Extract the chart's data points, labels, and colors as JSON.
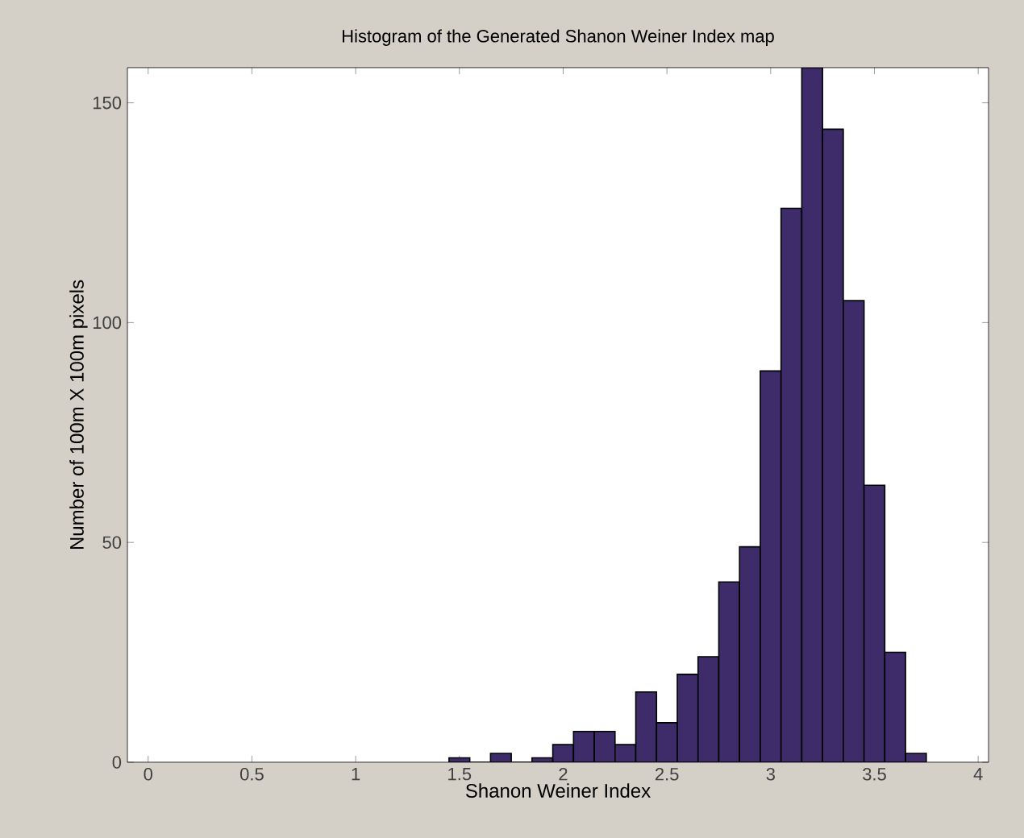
{
  "chart_data": {
    "type": "histogram",
    "title": "Histogram of the Generated Shanon Weiner Index map",
    "xlabel": "Shanon Weiner Index",
    "ylabel": "Number of 100m X 100m pixels",
    "bins": [
      1.45,
      1.55,
      1.65,
      1.75,
      1.85,
      1.95,
      2.05,
      2.15,
      2.25,
      2.35,
      2.45,
      2.55,
      2.65,
      2.75,
      2.85,
      2.95,
      3.05,
      3.15,
      3.25,
      3.35,
      3.45,
      3.55,
      3.65,
      3.75
    ],
    "values": [
      1,
      0,
      2,
      0,
      1,
      4,
      7,
      7,
      4,
      16,
      9,
      20,
      24,
      41,
      49,
      89,
      126,
      158,
      144,
      105,
      63,
      25,
      2
    ],
    "color": "#3d2b6a",
    "xlim": [
      -0.1,
      4.05
    ],
    "ylim": [
      0,
      158
    ],
    "xticks": [
      0,
      0.5,
      1,
      1.5,
      2,
      2.5,
      3,
      3.5,
      4
    ],
    "yticks": [
      0,
      50,
      100,
      150
    ],
    "grid": false
  }
}
